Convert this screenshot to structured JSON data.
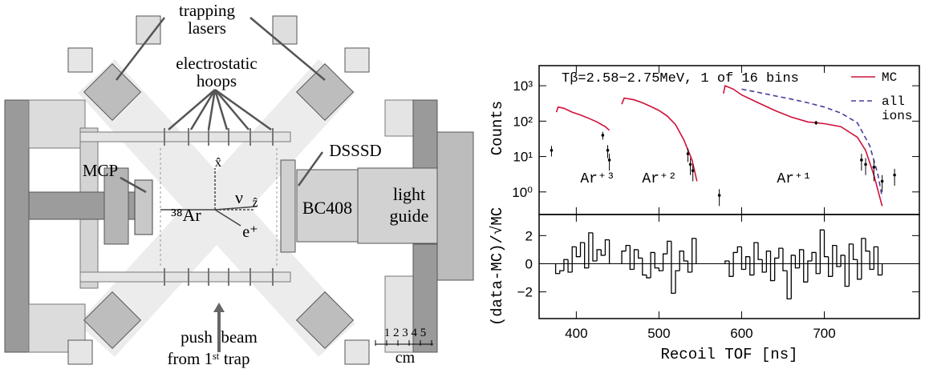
{
  "diagram": {
    "labels": {
      "trapping_lasers": [
        "trapping",
        "lasers"
      ],
      "electrostatic_hoops": [
        "electrostatic",
        "hoops"
      ],
      "dsssd": "DSSSD",
      "mcp": "MCP",
      "argon": "³⁸Ar",
      "nu": "ν",
      "x_axis": "x̂",
      "z_axis": "ẑ",
      "positron": "e⁺",
      "bc408": "BC408",
      "light_guide": [
        "light",
        "guide"
      ],
      "push_beam": [
        "push  beam",
        "from 1ˢᵗ trap"
      ],
      "scale_numbers": "1 2 3 4 5",
      "scale_unit": "cm"
    }
  },
  "chart_data": [
    {
      "type": "line",
      "title": "Tβ=2.58−2.75MeV, 1 of 16 bins",
      "ylabel": "Counts",
      "log_y": true,
      "xlim": [
        355,
        815
      ],
      "xticks": [
        400,
        500,
        600,
        700
      ],
      "ylim": [
        0.23,
        3700
      ],
      "yticks": [
        {
          "value": 1,
          "label": "10⁰"
        },
        {
          "value": 10,
          "label": "10¹"
        },
        {
          "value": 100,
          "label": "10²"
        },
        {
          "value": 1000,
          "label": "10³"
        }
      ],
      "legend": "top-right",
      "annotations": [
        "Ar⁺³",
        "Ar⁺²",
        "Ar⁺¹"
      ],
      "series": [
        {
          "name": "MC",
          "color": "#d0103a",
          "style": "line",
          "x": [
            376,
            378,
            385,
            395,
            405,
            415,
            425,
            435,
            440,
            442,
            455,
            458,
            470,
            480,
            490,
            500,
            510,
            520,
            530,
            540,
            546,
            560,
            578,
            580,
            590,
            600,
            620,
            640,
            660,
            680,
            700,
            720,
            740,
            750,
            760,
            770
          ],
          "values": [
            180,
            250,
            230,
            180,
            150,
            120,
            95,
            70,
            55,
            null,
            300,
            450,
            400,
            330,
            260,
            200,
            140,
            80,
            30,
            8,
            2,
            null,
            600,
            1000,
            800,
            550,
            330,
            200,
            130,
            95,
            85,
            70,
            35,
            15,
            3,
            0.4
          ]
        },
        {
          "name": "all ions",
          "color": "#4a3c9c",
          "style": "dashed",
          "x": [
            600,
            620,
            640,
            660,
            680,
            700,
            720,
            740,
            755,
            765,
            770
          ],
          "values": [
            800,
            650,
            520,
            420,
            330,
            250,
            170,
            90,
            20,
            3,
            0.7
          ]
        },
        {
          "color": "#000000",
          "style": "points",
          "x": [
            370,
            432,
            438,
            440,
            535,
            538,
            541,
            573,
            690,
            745,
            750,
            760,
            770,
            785
          ],
          "values": [
            15,
            40,
            15,
            8,
            12,
            6,
            4,
            0.8,
            90,
            8,
            6,
            5,
            2,
            3
          ],
          "errors": [
            5,
            10,
            6,
            4,
            5,
            3,
            2,
            0.4,
            12,
            4,
            3,
            3,
            1,
            1.5
          ]
        }
      ]
    },
    {
      "type": "histogram",
      "xlabel": "Recoil TOF [ns]",
      "ylabel": "(data-MC)/√MC",
      "xlim": [
        355,
        815
      ],
      "xticks": [
        400,
        500,
        600,
        700
      ],
      "ylim": [
        -3.9,
        3.5
      ],
      "yticks": [
        {
          "value": -2,
          "label": "−2"
        },
        0,
        2
      ],
      "reference_line": 0,
      "series": [
        {
          "color": "#000000",
          "bins": [
            375,
            380,
            385,
            390,
            395,
            400,
            405,
            410,
            415,
            420,
            425,
            430,
            435,
            440
          ],
          "values": [
            -0.7,
            -0.5,
            0.3,
            -0.6,
            1.2,
            0.5,
            1.5,
            -0.3,
            2.2,
            0.2,
            1.0,
            0.6,
            1.7
          ]
        },
        {
          "color": "#000000",
          "bins": [
            455,
            460,
            465,
            470,
            475,
            480,
            485,
            490,
            495,
            500,
            505,
            510,
            515,
            520,
            525,
            530,
            535,
            540,
            545
          ],
          "values": [
            0.9,
            1.3,
            -0.4,
            1.0,
            0.4,
            -0.8,
            -1.0,
            0.8,
            -0.3,
            -0.5,
            0.7,
            1.6,
            -2.1,
            -0.5,
            0.9,
            0.2,
            -0.6,
            1.8
          ]
        },
        {
          "color": "#000000",
          "bins": [
            580,
            585,
            590,
            595,
            600,
            605,
            610,
            615,
            620,
            625,
            630,
            635,
            640,
            645,
            650,
            655,
            660,
            665,
            670,
            675,
            680,
            685,
            690,
            695,
            700,
            705,
            710,
            715,
            720,
            725,
            730,
            735,
            740,
            745,
            750,
            755,
            760,
            765,
            770
          ],
          "values": [
            0.2,
            -0.9,
            0.8,
            1.2,
            -0.4,
            0.5,
            -0.8,
            1.5,
            0.3,
            -0.6,
            0.9,
            -1.2,
            0.4,
            1.1,
            -0.5,
            -2.5,
            0.6,
            -0.3,
            1.0,
            -1.3,
            0.2,
            0.8,
            -0.7,
            2.4,
            0.5,
            -0.9,
            1.3,
            -0.2,
            0.6,
            -1.6,
            1.4,
            0.3,
            -1.1,
            1.8,
            0.9,
            -0.4,
            1.2,
            -0.8
          ]
        }
      ]
    }
  ]
}
